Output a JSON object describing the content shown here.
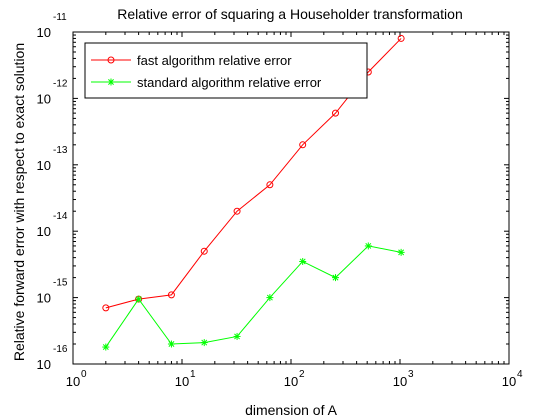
{
  "chart_data": {
    "type": "line",
    "title": "Relative error of squaring a Householder transformation",
    "xlabel": "dimension of A",
    "ylabel": "Relative forward error with respect to exact solution",
    "xscale": "log",
    "yscale": "log",
    "xlim": [
      1,
      10000
    ],
    "ylim": [
      1e-16,
      1e-11
    ],
    "x_ticks": [
      {
        "base": "10",
        "exp": "0"
      },
      {
        "base": "10",
        "exp": "1"
      },
      {
        "base": "10",
        "exp": "2"
      },
      {
        "base": "10",
        "exp": "3"
      },
      {
        "base": "10",
        "exp": "4"
      }
    ],
    "y_ticks": [
      {
        "base": "10",
        "exp": "-16"
      },
      {
        "base": "10",
        "exp": "-15"
      },
      {
        "base": "10",
        "exp": "-14"
      },
      {
        "base": "10",
        "exp": "-13"
      },
      {
        "base": "10",
        "exp": "-12"
      },
      {
        "base": "10",
        "exp": "-11"
      }
    ],
    "grid": false,
    "legend_position": "top-left",
    "x": [
      2,
      4,
      8,
      16,
      32,
      64,
      128,
      256,
      512,
      1024
    ],
    "series": [
      {
        "name": "fast algorithm relative error",
        "color": "#ff0000",
        "marker": "circle",
        "values": [
          7e-16,
          9.5e-16,
          1.1e-15,
          5e-15,
          2e-14,
          5e-14,
          2e-13,
          6e-13,
          2.5e-12,
          8e-12
        ]
      },
      {
        "name": "standard algorithm relative error",
        "color": "#00ff00",
        "marker": "star",
        "values": [
          1.8e-16,
          9.5e-16,
          2e-16,
          2.1e-16,
          2.6e-16,
          1e-15,
          3.5e-15,
          2e-15,
          6e-15,
          4.8e-15
        ]
      }
    ]
  }
}
